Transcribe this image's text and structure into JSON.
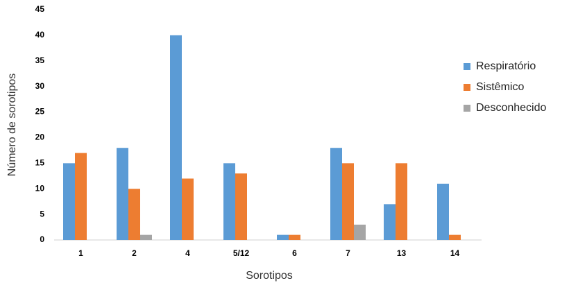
{
  "chart_data": {
    "type": "bar",
    "x_label": "Sorotipos",
    "y_label": "Número de sorotipos",
    "categories": [
      "1",
      "2",
      "4",
      "5/12",
      "6",
      "7",
      "13",
      "14"
    ],
    "series": [
      {
        "name": "Respiratório",
        "color": "#5b9bd5",
        "values": [
          15,
          18,
          40,
          15,
          1,
          18,
          7,
          11
        ]
      },
      {
        "name": "Sistêmico",
        "color": "#ed7d31",
        "values": [
          17,
          10,
          12,
          13,
          1,
          15,
          15,
          1
        ]
      },
      {
        "name": "Desconhecido",
        "color": "#a5a5a5",
        "values": [
          0,
          1,
          0,
          0,
          0,
          3,
          0,
          0
        ]
      }
    ],
    "ylim": [
      0,
      45
    ],
    "yticks": [
      0,
      5,
      10,
      15,
      20,
      25,
      30,
      35,
      40,
      45
    ],
    "grid": false,
    "legend": "right"
  }
}
